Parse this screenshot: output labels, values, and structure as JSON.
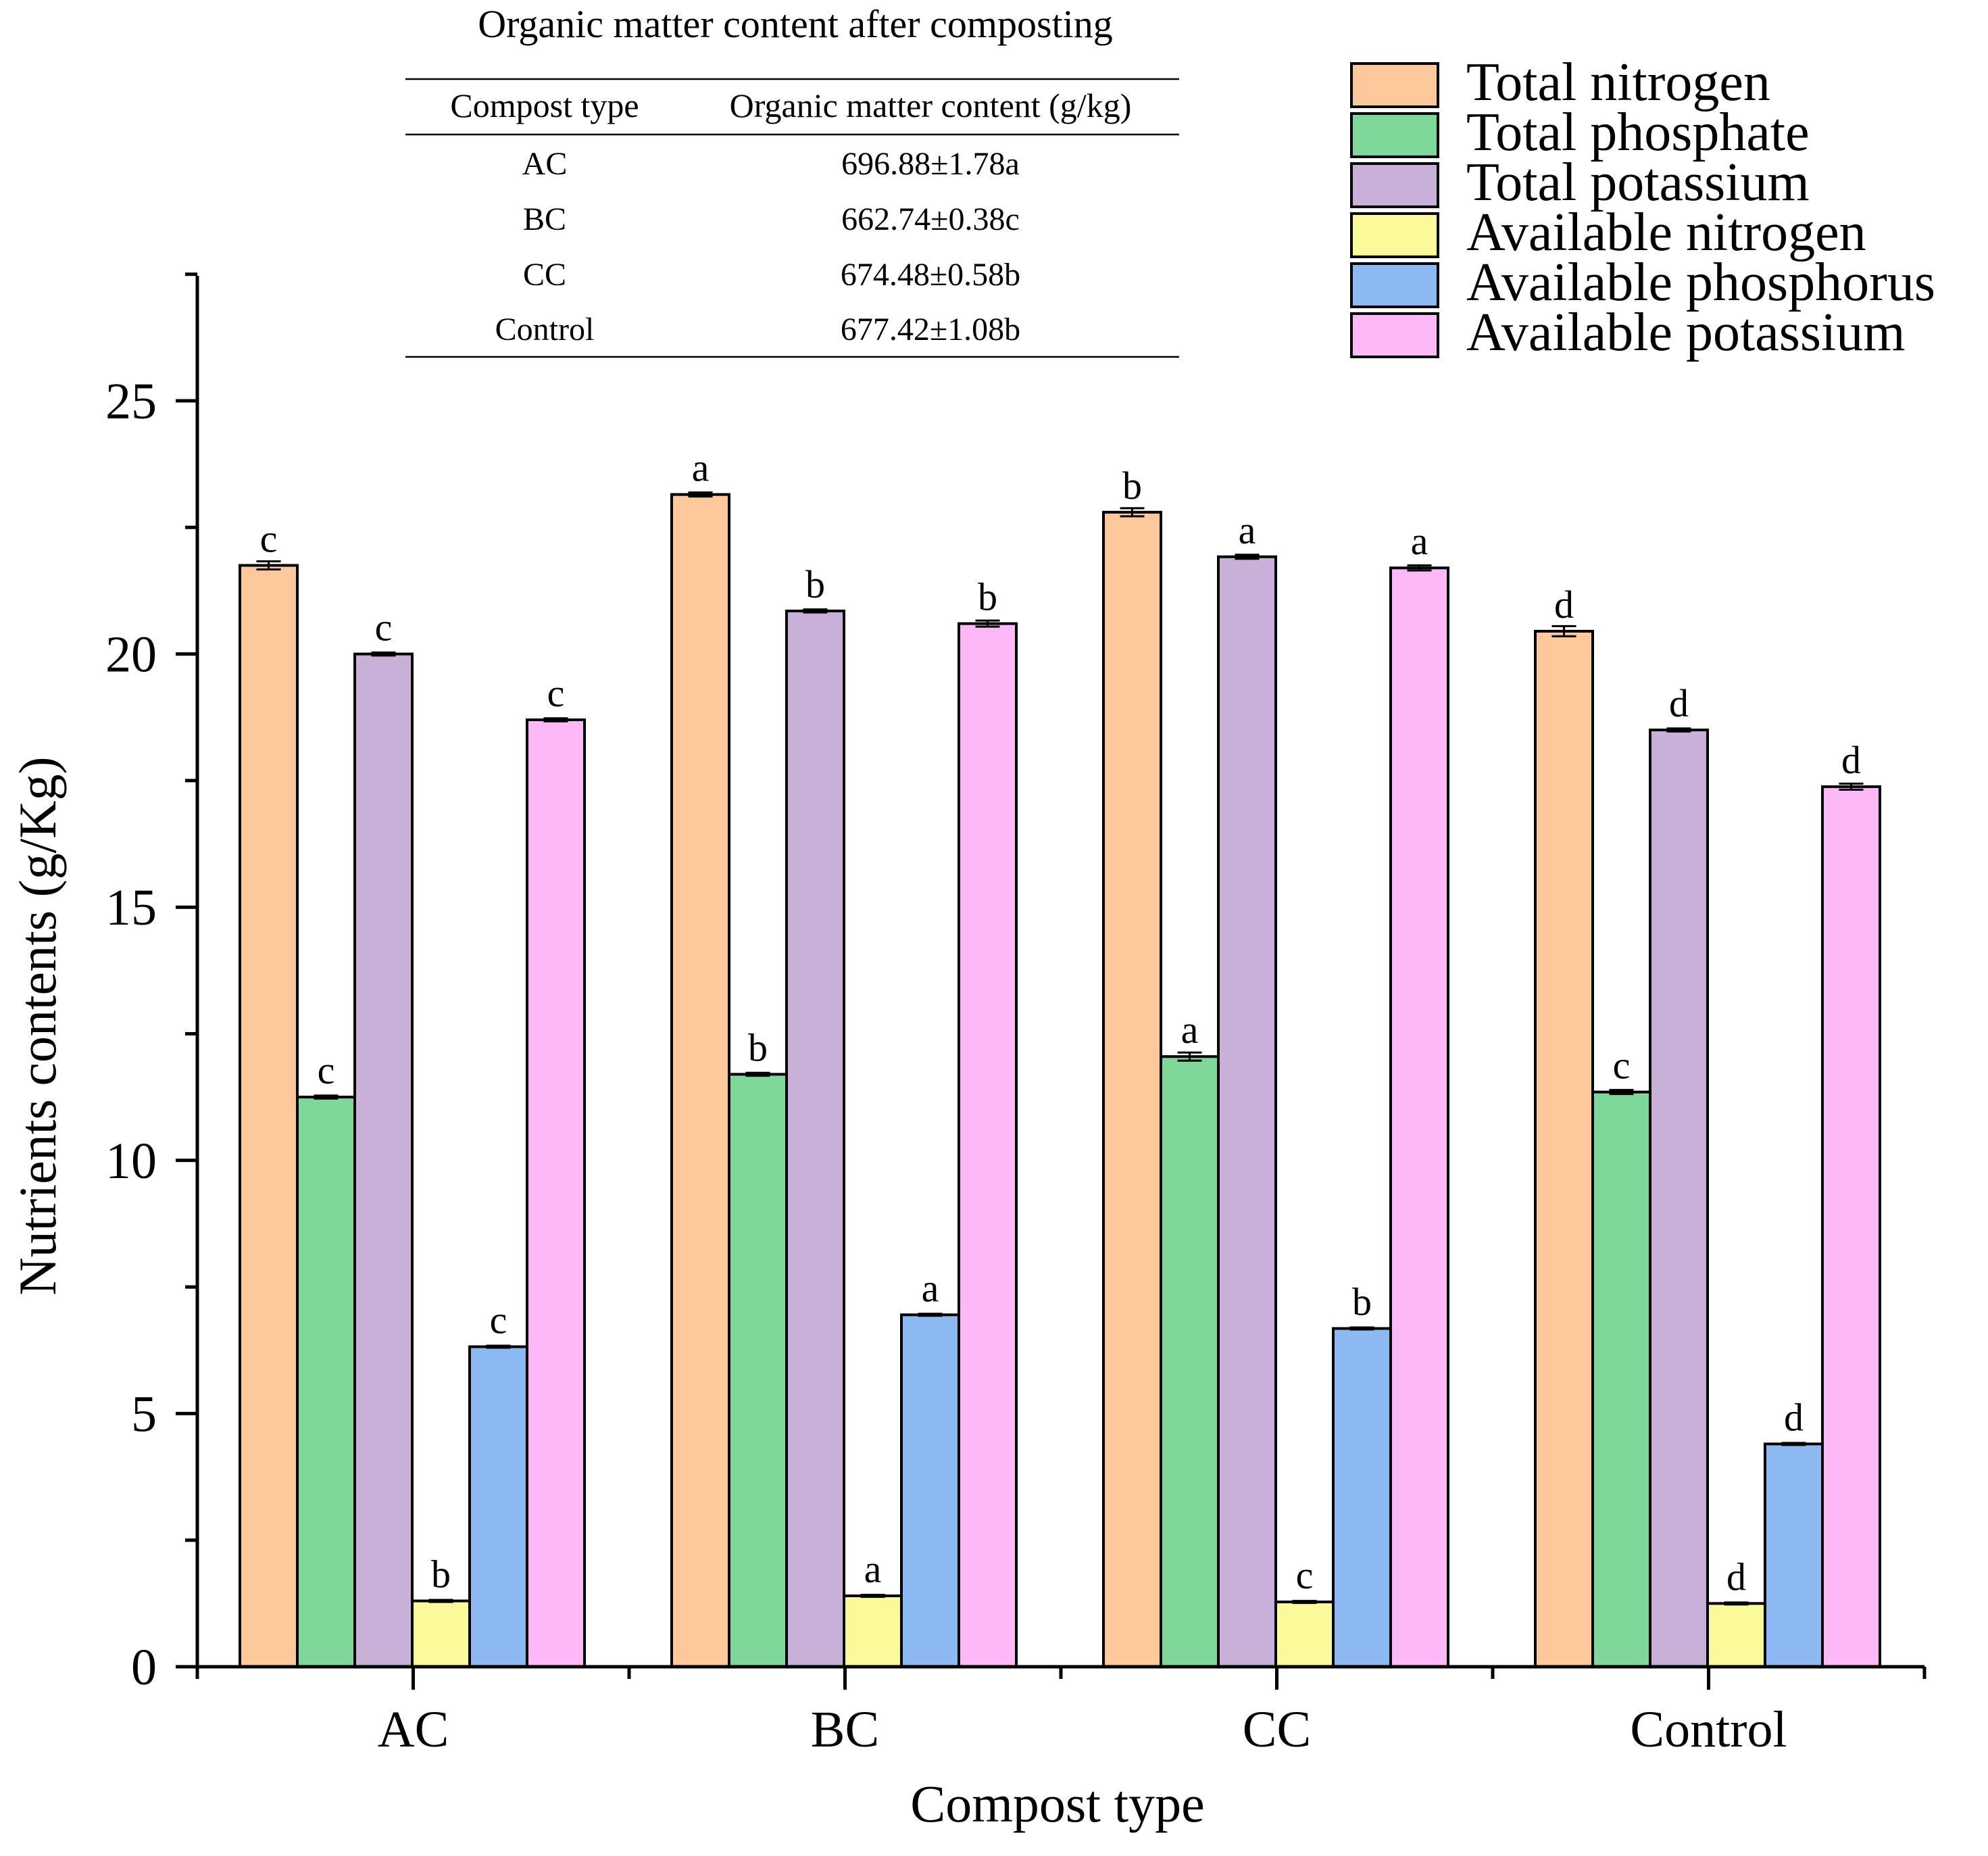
{
  "chart_data": {
    "type": "bar",
    "title": "",
    "xlabel": "Compost type",
    "ylabel": "Nutrients contents (g/Kg)",
    "ylim": [
      0,
      27.5
    ],
    "yticks": [
      0,
      5,
      10,
      15,
      20,
      25
    ],
    "ytick_labels": [
      "0",
      "5",
      "10",
      "15",
      "20",
      "25"
    ],
    "categories": [
      "AC",
      "BC",
      "CC",
      "Control"
    ],
    "legend_position": "top-right",
    "series": [
      {
        "name": "Total nitrogen",
        "color": "#FDC99B",
        "values": [
          21.75,
          23.15,
          22.8,
          20.45
        ],
        "errors": [
          0.08,
          0.04,
          0.08,
          0.1
        ],
        "letters": [
          "c",
          "a",
          "b",
          "d"
        ]
      },
      {
        "name": "Total phosphate",
        "color": "#7ED89A",
        "values": [
          11.25,
          11.7,
          12.05,
          11.35
        ],
        "errors": [
          0.03,
          0.03,
          0.08,
          0.04
        ],
        "letters": [
          "c",
          "b",
          "a",
          "c"
        ]
      },
      {
        "name": "Total potassium",
        "color": "#C9B0D8",
        "values": [
          20.0,
          20.85,
          21.92,
          18.5
        ],
        "errors": [
          0.03,
          0.03,
          0.04,
          0.03
        ],
        "letters": [
          "c",
          "b",
          "a",
          "d"
        ]
      },
      {
        "name": "Available nitrogen",
        "color": "#FAFA9B",
        "values": [
          1.3,
          1.4,
          1.28,
          1.25
        ],
        "errors": [
          0.02,
          0.02,
          0.02,
          0.02
        ],
        "letters": [
          "b",
          "a",
          "c",
          "d"
        ]
      },
      {
        "name": "Available phosphorus",
        "color": "#8DB9F2",
        "values": [
          6.32,
          6.95,
          6.68,
          4.4
        ],
        "errors": [
          0.02,
          0.02,
          0.02,
          0.02
        ],
        "letters": [
          "c",
          "a",
          "b",
          "d"
        ]
      },
      {
        "name": "Available potassium",
        "color": "#FDB8F8",
        "values": [
          18.7,
          20.6,
          21.7,
          17.38
        ],
        "errors": [
          0.03,
          0.06,
          0.05,
          0.06
        ],
        "letters": [
          "c",
          "b",
          "a",
          "d"
        ]
      }
    ],
    "table": {
      "title": "Organic matter content after composting",
      "columns": [
        "Compost type",
        "Organic matter content (g/kg)"
      ],
      "rows": [
        [
          "AC",
          "696.88±1.78a"
        ],
        [
          "BC",
          "662.74±0.38c"
        ],
        [
          "CC",
          "674.48±0.58b"
        ],
        [
          "Control",
          "677.42±1.08b"
        ]
      ]
    }
  }
}
